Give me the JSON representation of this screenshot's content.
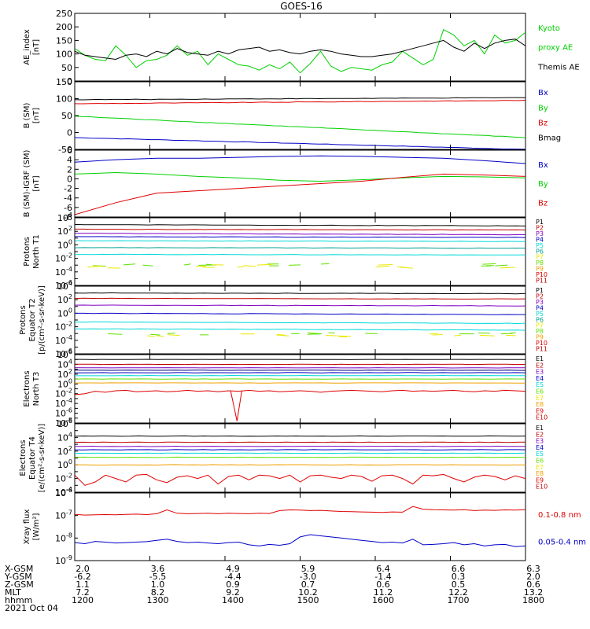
{
  "title": "GOES-16",
  "colors": {
    "black": "#000000",
    "red": "#e00000",
    "green": "#00d000",
    "blue": "#0000c8",
    "purple": "#8000c0",
    "cyan": "#00d8d8",
    "teal": "#00a090",
    "lime": "#60e000",
    "yellow": "#e8e800",
    "orange": "#f0a000",
    "darkred": "#c00000",
    "navy": "#000080"
  },
  "chart_data": [
    {
      "id": "ae",
      "type": "line",
      "ylabel": [
        "AE_index",
        "[nT]"
      ],
      "ylim": [
        0,
        250
      ],
      "yticks": [
        0,
        50,
        100,
        150,
        200,
        250
      ],
      "series": [
        {
          "name": "Kyoto proxy AE",
          "color": "green",
          "values": [
            120,
            95,
            80,
            75,
            130,
            95,
            50,
            75,
            80,
            95,
            130,
            95,
            110,
            60,
            100,
            80,
            60,
            55,
            40,
            60,
            45,
            70,
            30,
            65,
            110,
            55,
            35,
            50,
            45,
            40,
            60,
            70,
            110,
            85,
            60,
            80,
            190,
            170,
            130,
            150,
            100,
            170,
            140,
            150,
            180
          ]
        },
        {
          "name": "Themis AE",
          "color": "black",
          "values": [
            110,
            95,
            90,
            85,
            80,
            95,
            100,
            90,
            110,
            100,
            120,
            105,
            100,
            95,
            110,
            100,
            115,
            120,
            125,
            110,
            115,
            105,
            100,
            110,
            115,
            110,
            100,
            95,
            90,
            90,
            95,
            100,
            110,
            120,
            130,
            140,
            150,
            125,
            110,
            140,
            120,
            140,
            150,
            155,
            130
          ]
        }
      ],
      "legend": [
        {
          "label": "Kyoto",
          "color": "green"
        },
        {
          "label": "proxy AE",
          "color": "green"
        },
        {
          "label": "Themis AE",
          "color": "black"
        }
      ]
    },
    {
      "id": "bsm",
      "type": "line",
      "ylabel": [
        "B (SM)",
        "[nT]"
      ],
      "ylim": [
        -50,
        150
      ],
      "yticks": [
        -50,
        0,
        50,
        100,
        150
      ],
      "series": [
        {
          "name": "Bx",
          "color": "blue",
          "values": [
            -15,
            -50
          ]
        },
        {
          "name": "By",
          "color": "green",
          "values": [
            48,
            -15
          ]
        },
        {
          "name": "Bz",
          "color": "red",
          "values": [
            85,
            95
          ]
        },
        {
          "name": "Bmag",
          "color": "black",
          "values": [
            97,
            103
          ]
        }
      ],
      "legend": [
        {
          "label": "Bx",
          "color": "blue"
        },
        {
          "label": "By",
          "color": "green"
        },
        {
          "label": "Bz",
          "color": "red"
        },
        {
          "label": "Bmag",
          "color": "black"
        }
      ]
    },
    {
      "id": "bigrf",
      "type": "line",
      "ylabel": [
        "B (SM)-IGRF (SM)",
        "[nT]"
      ],
      "ylim": [
        -8,
        6
      ],
      "yticks": [
        -8,
        -6,
        -4,
        -2,
        0,
        2,
        4,
        6
      ],
      "series": [
        {
          "name": "Bx",
          "color": "blue",
          "values": [
            3.5,
            4.0,
            4.3,
            4.3,
            4.5,
            4.7,
            4.8,
            4.7,
            4.5,
            4.3,
            3.8,
            3.2
          ]
        },
        {
          "name": "By",
          "color": "green",
          "values": [
            1.0,
            1.3,
            1.0,
            0.5,
            0.2,
            -0.3,
            -0.5,
            -0.2,
            0.2,
            0.5,
            0.4,
            0.2
          ]
        },
        {
          "name": "Bz",
          "color": "red",
          "values": [
            -7.5,
            -5.0,
            -3.0,
            -2.5,
            -2.0,
            -1.5,
            -1.0,
            -0.5,
            0.3,
            1.0,
            0.8,
            0.5
          ]
        }
      ],
      "legend": [
        {
          "label": "Bx",
          "color": "blue"
        },
        {
          "label": "By",
          "color": "green"
        },
        {
          "label": "Bz",
          "color": "red"
        }
      ]
    },
    {
      "id": "pnt1",
      "type": "line",
      "ylog": true,
      "ylabel": [
        "Protons",
        "North T1"
      ],
      "yexp": [
        -6,
        4
      ],
      "ylabelexp": [
        -6,
        -4,
        -2,
        0,
        2,
        4
      ],
      "series_logs": [
        [
          3.0,
          2.8
        ],
        [
          2.3,
          2.2
        ],
        [
          1.7,
          1.5
        ],
        [
          1.2,
          1.1
        ],
        [
          0.6,
          0.5
        ],
        [
          -0.4,
          -0.5
        ],
        [
          -1.4,
          -1.5
        ]
      ],
      "series_colors": [
        "black",
        "darkred",
        "purple",
        "blue",
        "cyan",
        "teal",
        "cyan"
      ],
      "sparse_logs": [
        [
          -2.8,
          -3.0
        ],
        [
          -3.5,
          -3.0
        ]
      ],
      "sparse_colors": [
        "lime",
        "yellow"
      ],
      "legend": [
        {
          "label": "P1",
          "color": "black"
        },
        {
          "label": "P2",
          "color": "darkred"
        },
        {
          "label": "P3",
          "color": "purple"
        },
        {
          "label": "P4",
          "color": "blue"
        },
        {
          "label": "P5",
          "color": "cyan"
        },
        {
          "label": "P6",
          "color": "teal"
        },
        {
          "label": "P7",
          "color": "yellow"
        },
        {
          "label": "P8",
          "color": "lime"
        },
        {
          "label": "P9",
          "color": "orange"
        },
        {
          "label": "P10",
          "color": "red"
        },
        {
          "label": "P11",
          "color": "darkred"
        }
      ]
    },
    {
      "id": "pet2",
      "type": "line",
      "ylog": true,
      "ylabel": [
        "Protons",
        "Equator T2",
        "[p/(cm²-s-sr-keV)]"
      ],
      "yexp": [
        -6,
        4
      ],
      "ylabelexp": [
        -6,
        -4,
        -2,
        0,
        2,
        4
      ],
      "series_logs": [
        [
          3.0,
          2.9
        ],
        [
          2.2,
          2.1
        ],
        [
          1.2,
          1.1
        ],
        [
          0.0,
          -0.2
        ],
        [
          -1.3,
          -1.5
        ],
        [
          -2.3,
          -2.5
        ]
      ],
      "series_colors": [
        "black",
        "darkred",
        "purple",
        "blue",
        "cyan",
        "cyan"
      ],
      "sparse_logs": [
        [
          -3.0,
          -3.0
        ],
        [
          -3.4,
          -3.2
        ]
      ],
      "sparse_colors": [
        "lime",
        "yellow"
      ],
      "legend": [
        {
          "label": "P1",
          "color": "black"
        },
        {
          "label": "P2",
          "color": "darkred"
        },
        {
          "label": "P3",
          "color": "purple"
        },
        {
          "label": "P4",
          "color": "blue"
        },
        {
          "label": "P5",
          "color": "cyan"
        },
        {
          "label": "P6",
          "color": "teal"
        },
        {
          "label": "P7",
          "color": "yellow"
        },
        {
          "label": "P8",
          "color": "lime"
        },
        {
          "label": "P9",
          "color": "orange"
        },
        {
          "label": "P10",
          "color": "red"
        },
        {
          "label": "P11",
          "color": "darkred"
        }
      ]
    },
    {
      "id": "ent3",
      "type": "line",
      "ylog": true,
      "ylabel": [
        "Electrons",
        "North T3"
      ],
      "yexp": [
        -8,
        6
      ],
      "ylabelexp": [
        -8,
        -6,
        -4,
        -2,
        0,
        2,
        4,
        6
      ],
      "series_logs": [
        [
          5.0,
          5.0
        ],
        [
          4.0,
          4.0
        ],
        [
          3.3,
          3.3
        ],
        [
          2.8,
          2.8
        ],
        [
          2.3,
          2.3
        ],
        [
          1.7,
          1.7
        ],
        [
          1.0,
          1.0
        ],
        [
          0.2,
          0.2
        ]
      ],
      "series_colors": [
        "black",
        "darkred",
        "purple",
        "navy",
        "blue",
        "cyan",
        "lime",
        "orange"
      ],
      "noisy": {
        "color": "red",
        "values": [
          -2.2,
          -2.0,
          -1.5,
          -1.7,
          -1.4,
          -1.3,
          -1.6,
          -1.5,
          -1.4,
          -1.6,
          -1.5,
          -1.3,
          -1.5,
          -1.4,
          -1.6,
          -1.4,
          -1.5,
          -1.3,
          -1.5,
          -1.4,
          -1.6,
          -1.5,
          -1.4,
          -1.5,
          -1.7,
          -1.5,
          -1.4,
          -1.3,
          -1.4,
          -1.5,
          -1.6,
          -1.4,
          -1.3,
          -1.5,
          -1.4,
          -1.5,
          -1.4,
          -1.3,
          -1.5,
          -1.6,
          -1.4,
          -1.5,
          -1.3,
          -1.4,
          -1.5
        ]
      },
      "spike": {
        "color": "red",
        "at": 0.36,
        "min": -7.6
      },
      "legend": [
        {
          "label": "E1",
          "color": "black"
        },
        {
          "label": "E2",
          "color": "darkred"
        },
        {
          "label": "E3",
          "color": "purple"
        },
        {
          "label": "E4",
          "color": "blue"
        },
        {
          "label": "E5",
          "color": "cyan"
        },
        {
          "label": "E6",
          "color": "lime"
        },
        {
          "label": "E7",
          "color": "yellow"
        },
        {
          "label": "E8",
          "color": "orange"
        },
        {
          "label": "E9",
          "color": "red"
        },
        {
          "label": "E10",
          "color": "darkred"
        }
      ]
    },
    {
      "id": "eet4",
      "type": "line",
      "ylog": true,
      "ylabel": [
        "Electrons",
        "Equator T4",
        "[e/(cm²-s-sr-keV)]"
      ],
      "yexp": [
        -4,
        6
      ],
      "ylabelexp": [
        -4,
        -2,
        0,
        2,
        4,
        6
      ],
      "series_logs": [
        [
          4.2,
          4.2
        ],
        [
          3.3,
          3.3
        ],
        [
          2.7,
          2.7
        ],
        [
          2.2,
          2.2
        ],
        [
          1.7,
          1.7
        ],
        [
          1.1,
          1.1
        ],
        [
          0.0,
          0.0
        ]
      ],
      "series_colors": [
        "black",
        "darkred",
        "purple",
        "blue",
        "cyan",
        "lime",
        "orange"
      ],
      "noisy": {
        "color": "red",
        "values": [
          -1.5,
          -3.0,
          -2.5,
          -1.5,
          -2.0,
          -2.5,
          -1.5,
          -1.4,
          -2.2,
          -2.6,
          -1.8,
          -1.6,
          -2.0,
          -1.5,
          -2.8,
          -1.7,
          -1.5,
          -2.2,
          -1.5,
          -1.6,
          -2.0,
          -1.5,
          -2.5,
          -1.6,
          -1.5,
          -1.8,
          -2.0,
          -1.5,
          -1.7,
          -2.4,
          -1.6,
          -1.5,
          -2.0,
          -2.8,
          -1.5,
          -1.6,
          -1.4,
          -2.0,
          -2.5,
          -1.8,
          -1.5,
          -1.7,
          -2.2,
          -1.6,
          -2.0
        ]
      },
      "legend": [
        {
          "label": "E1",
          "color": "black"
        },
        {
          "label": "E2",
          "color": "darkred"
        },
        {
          "label": "E3",
          "color": "purple"
        },
        {
          "label": "E4",
          "color": "blue"
        },
        {
          "label": "E5",
          "color": "cyan"
        },
        {
          "label": "E6",
          "color": "lime"
        },
        {
          "label": "E7",
          "color": "yellow"
        },
        {
          "label": "E8",
          "color": "orange"
        },
        {
          "label": "E9",
          "color": "red"
        },
        {
          "label": "E10",
          "color": "darkred"
        }
      ]
    },
    {
      "id": "xray",
      "type": "line",
      "ylog": true,
      "ylabel": [
        "Xray flux",
        "[W/m²]"
      ],
      "yexp": [
        -9,
        -6
      ],
      "ylabelexp": [
        -9,
        -8,
        -7,
        -6
      ],
      "series": [
        {
          "name": "0.1-0.8 nm",
          "color": "red",
          "values": [
            -6.95,
            -6.98,
            -6.97,
            -6.96,
            -6.97,
            -6.95,
            -6.94,
            -6.96,
            -6.92,
            -6.75,
            -6.9,
            -6.92,
            -6.91,
            -6.9,
            -6.92,
            -6.9,
            -6.91,
            -6.92,
            -6.9,
            -6.91,
            -6.78,
            -6.75,
            -6.76,
            -6.78,
            -6.77,
            -6.8,
            -6.82,
            -6.83,
            -6.84,
            -6.85,
            -6.86,
            -6.84,
            -6.85,
            -6.6,
            -6.72,
            -6.74,
            -6.75,
            -6.76,
            -6.74,
            -6.78,
            -6.76,
            -6.77,
            -6.75,
            -6.76,
            -6.74
          ]
        },
        {
          "name": "0.05-0.4 nm",
          "color": "blue",
          "values": [
            -8.2,
            -8.25,
            -8.15,
            -8.18,
            -8.22,
            -8.2,
            -8.18,
            -8.16,
            -8.1,
            -8.05,
            -8.15,
            -8.2,
            -8.18,
            -8.22,
            -8.25,
            -8.2,
            -8.18,
            -8.3,
            -8.35,
            -8.28,
            -8.32,
            -8.25,
            -7.95,
            -7.85,
            -7.9,
            -7.95,
            -8.0,
            -8.05,
            -8.1,
            -8.15,
            -8.2,
            -8.18,
            -8.22,
            -8.05,
            -8.3,
            -8.28,
            -8.25,
            -8.2,
            -8.3,
            -8.25,
            -8.35,
            -8.3,
            -8.28,
            -8.38,
            -8.35
          ]
        }
      ],
      "legend": [
        {
          "label": "0.1-0.8 nm",
          "color": "red"
        },
        {
          "label": "0.05-0.4 nm",
          "color": "blue"
        }
      ]
    }
  ],
  "x_axis": {
    "rows": [
      {
        "name": "X-GSM",
        "values": [
          "2.0",
          "3.6",
          "4.9",
          "5.9",
          "6.4",
          "6.6",
          "6.3"
        ]
      },
      {
        "name": "Y-GSM",
        "values": [
          "-6.2",
          "-5.5",
          "-4.4",
          "-3.0",
          "-1.4",
          "0.3",
          "2.0"
        ]
      },
      {
        "name": "Z-GSM",
        "values": [
          "1.1",
          "1.0",
          "0.9",
          "0.7",
          "0.6",
          "0.5",
          "0.6"
        ]
      },
      {
        "name": "MLT",
        "values": [
          "7.2",
          "8.2",
          "9.2",
          "10.2",
          "11.2",
          "12.2",
          "13.2"
        ]
      },
      {
        "name": "hhmm",
        "values": [
          "1200",
          "1300",
          "1400",
          "1500",
          "1600",
          "1700",
          "1800"
        ]
      }
    ],
    "date": "2021 Oct 04"
  }
}
